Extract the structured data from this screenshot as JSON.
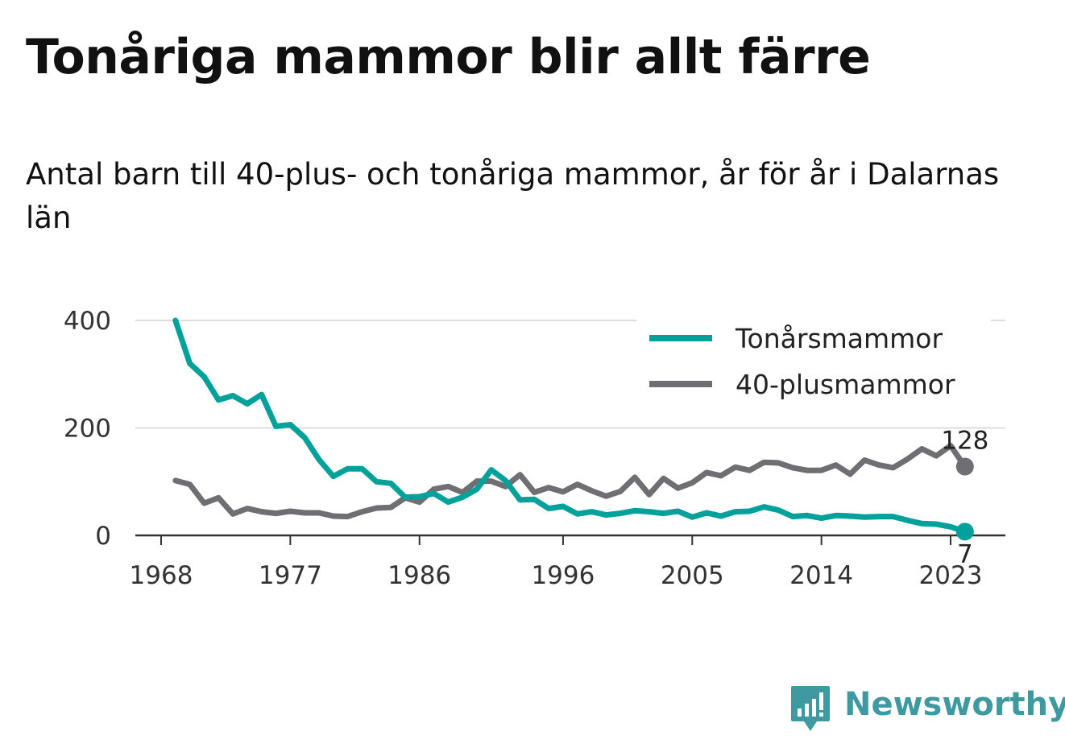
{
  "chart_data": {
    "type": "line",
    "title": "Tonåriga mammor blir allt färre",
    "subtitle": "Antal barn till 40-plus- och tonåriga mammor, år för år i Dalarnas län",
    "xlabel": "",
    "ylabel": "",
    "xlim": [
      1968,
      2026
    ],
    "ylim": [
      0,
      400
    ],
    "x_ticks": [
      1968,
      1977,
      1986,
      1996,
      2005,
      2014,
      2023
    ],
    "y_ticks": [
      0,
      200,
      400
    ],
    "grid": "horizontal",
    "legend": "top-right",
    "x": [
      1969,
      1970,
      1971,
      1972,
      1973,
      1974,
      1975,
      1976,
      1977,
      1978,
      1979,
      1980,
      1981,
      1982,
      1983,
      1984,
      1985,
      1986,
      1987,
      1988,
      1989,
      1990,
      1991,
      1992,
      1993,
      1994,
      1995,
      1996,
      1997,
      1998,
      1999,
      2000,
      2001,
      2002,
      2003,
      2004,
      2005,
      2006,
      2007,
      2008,
      2009,
      2010,
      2011,
      2012,
      2013,
      2014,
      2015,
      2016,
      2017,
      2018,
      2019,
      2020,
      2021,
      2022,
      2023,
      2024
    ],
    "series": [
      {
        "name": "Tonårsmammor",
        "color": "#00a19a",
        "end_label": "7",
        "values": [
          400,
          320,
          295,
          252,
          260,
          245,
          262,
          203,
          206,
          182,
          141,
          110,
          124,
          124,
          100,
          97,
          71,
          72,
          78,
          62,
          71,
          86,
          122,
          102,
          66,
          67,
          50,
          54,
          40,
          44,
          38,
          41,
          46,
          44,
          41,
          45,
          34,
          42,
          36,
          44,
          45,
          53,
          47,
          35,
          37,
          32,
          37,
          36,
          34,
          35,
          35,
          28,
          22,
          21,
          16,
          7
        ]
      },
      {
        "name": "40-plusmammor",
        "color": "#6e6e73",
        "end_label": "128",
        "values": [
          102,
          95,
          60,
          70,
          40,
          50,
          44,
          41,
          45,
          42,
          42,
          36,
          35,
          44,
          51,
          52,
          70,
          62,
          86,
          91,
          80,
          101,
          101,
          91,
          113,
          80,
          89,
          81,
          95,
          83,
          73,
          82,
          108,
          76,
          106,
          88,
          98,
          117,
          111,
          127,
          121,
          136,
          135,
          126,
          121,
          121,
          131,
          114,
          140,
          131,
          126,
          142,
          161,
          148,
          167,
          128
        ]
      }
    ]
  },
  "logo": {
    "text": "Newsworthy",
    "icon": "newsworthy-chat-bars-icon",
    "color": "#3e9aa0"
  }
}
